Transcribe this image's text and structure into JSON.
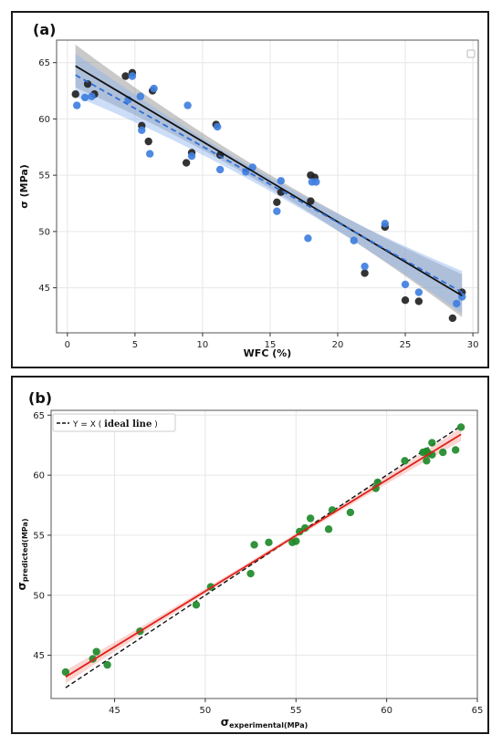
{
  "panels": {
    "a": {
      "label": "(a)"
    },
    "b": {
      "label": "(b)",
      "legend_prefix": "Y = X (",
      "legend_strong": "ideal line",
      "legend_suffix": ")"
    }
  },
  "chart_data": [
    {
      "type": "scatter",
      "title": "",
      "xlabel": "WFC (%)",
      "ylabel": "σ (MPa)",
      "xlim": [
        -0.8,
        30.4
      ],
      "ylim": [
        41.0,
        67.0
      ],
      "xticks": [
        0,
        5,
        10,
        15,
        20,
        25,
        30
      ],
      "yticks": [
        45,
        50,
        55,
        60,
        65
      ],
      "grid": true,
      "legend": "top-right (empty box)",
      "series": [
        {
          "color": "#222222",
          "x": [
            0.6,
            1.5,
            2.0,
            4.3,
            4.8,
            5.5,
            6.0,
            6.3,
            8.8,
            9.2,
            11.0,
            11.3,
            15.5,
            15.8,
            18.0,
            18.3,
            18.0,
            22.0,
            23.5,
            25.0,
            26.0,
            28.5,
            29.2
          ],
          "y": [
            62.2,
            63.1,
            62.2,
            63.8,
            64.1,
            59.4,
            58.0,
            62.5,
            56.1,
            57.0,
            59.5,
            56.8,
            52.6,
            53.5,
            55.0,
            54.8,
            52.7,
            46.3,
            50.4,
            43.9,
            43.8,
            42.3,
            44.6
          ]
        },
        {
          "color": "#3f7fdf",
          "x": [
            0.7,
            1.3,
            1.8,
            4.5,
            4.8,
            5.4,
            5.5,
            6.1,
            6.4,
            8.9,
            9.2,
            11.1,
            11.3,
            13.2,
            13.7,
            15.5,
            15.8,
            17.8,
            18.1,
            18.4,
            21.2,
            22.0,
            23.5,
            25.0,
            26.0,
            28.8,
            29.2
          ],
          "y": [
            61.2,
            61.9,
            62.0,
            61.7,
            63.8,
            62.0,
            59.0,
            56.9,
            62.7,
            61.2,
            56.7,
            59.3,
            55.5,
            55.3,
            55.7,
            51.8,
            54.5,
            49.4,
            54.4,
            54.4,
            49.2,
            46.9,
            50.7,
            45.3,
            44.6,
            43.6,
            44.2
          ]
        }
      ],
      "fit_lines": [
        {
          "style": "solid",
          "color": "#111111",
          "x": [
            0.6,
            29.2
          ],
          "y": [
            64.7,
            44.3
          ],
          "ci_color": "#888888"
        },
        {
          "style": "dashed",
          "color": "#2f6fd6",
          "x": [
            0.6,
            29.2
          ],
          "y": [
            63.9,
            44.6
          ],
          "ci_color": "#8fb4ef"
        }
      ]
    },
    {
      "type": "scatter",
      "title": "",
      "xlabel": "σexperimental(MPa)",
      "ylabel": "σpredicted(MPa)",
      "xlim": [
        41.5,
        65.0
      ],
      "ylim": [
        41.4,
        65.4
      ],
      "xticks": [
        45,
        50,
        55,
        60,
        65
      ],
      "yticks": [
        45,
        50,
        55,
        60,
        65
      ],
      "grid": true,
      "legend": "top-left",
      "series": [
        {
          "color": "#1f8a2a",
          "x": [
            42.3,
            43.8,
            44.0,
            44.6,
            46.4,
            49.5,
            50.3,
            52.5,
            52.7,
            53.5,
            54.8,
            55.0,
            55.2,
            55.5,
            55.8,
            56.8,
            57.0,
            58.0,
            59.4,
            59.5,
            61.0,
            62.0,
            62.2,
            62.2,
            62.3,
            62.5,
            62.5,
            63.1,
            63.8,
            64.1
          ],
          "y": [
            43.6,
            44.7,
            45.3,
            44.2,
            47.0,
            49.2,
            50.7,
            51.8,
            54.2,
            54.4,
            54.4,
            54.5,
            55.3,
            55.6,
            56.4,
            55.5,
            57.1,
            56.9,
            58.9,
            59.4,
            61.2,
            61.9,
            62.0,
            61.2,
            61.8,
            62.7,
            61.7,
            61.9,
            62.1,
            64.0
          ]
        }
      ],
      "fit_lines": [
        {
          "style": "solid",
          "color": "#e0201a",
          "x": [
            42.3,
            64.1
          ],
          "y": [
            43.2,
            63.4
          ],
          "ci_color": "#f2a39c"
        }
      ],
      "ideal_line": {
        "style": "dashed",
        "color": "#111111",
        "x": [
          42.3,
          64.1
        ],
        "y": [
          42.3,
          64.1
        ]
      }
    }
  ]
}
